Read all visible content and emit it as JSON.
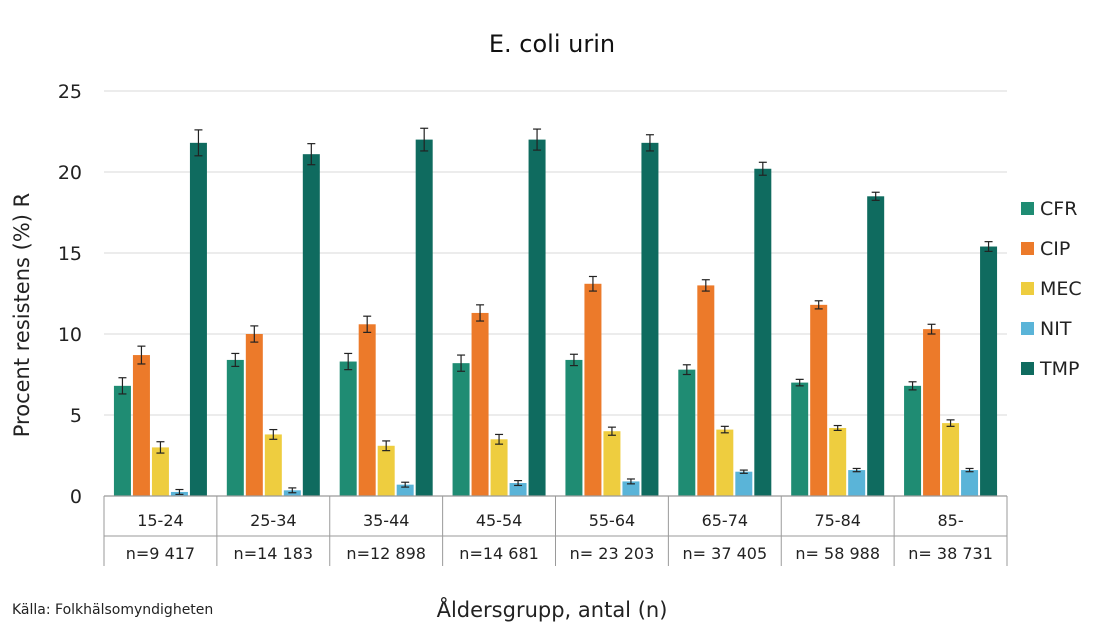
{
  "chart_data": {
    "type": "bar",
    "title": "E. coli urin",
    "xlabel": "Åldersgrupp, antal (n)",
    "ylabel": "Procent resistens (%) R",
    "ylim": [
      0,
      25
    ],
    "yticks": [
      0,
      5,
      10,
      15,
      20,
      25
    ],
    "grid": true,
    "legend_position": "right",
    "categories": [
      "15-24",
      "25-34",
      "35-44",
      "45-54",
      "55-64",
      "65-74",
      "75-84",
      "85-"
    ],
    "counts": [
      "n=9 417",
      "n=14 183",
      "n=12 898",
      "n=14 681",
      "n= 23 203",
      "n= 37 405",
      "n= 58 988",
      "n= 38 731"
    ],
    "series": [
      {
        "name": "CFR",
        "color": "#1f8c73",
        "values": [
          6.8,
          8.4,
          8.3,
          8.2,
          8.4,
          7.8,
          7.0,
          6.8
        ],
        "errors": [
          0.5,
          0.4,
          0.5,
          0.5,
          0.35,
          0.3,
          0.2,
          0.25
        ]
      },
      {
        "name": "CIP",
        "color": "#ec7a2a",
        "values": [
          8.7,
          10.0,
          10.6,
          11.3,
          13.1,
          13.0,
          11.8,
          10.3
        ],
        "errors": [
          0.55,
          0.5,
          0.5,
          0.5,
          0.45,
          0.35,
          0.25,
          0.3
        ]
      },
      {
        "name": "MEC",
        "color": "#eecd3f",
        "values": [
          3.0,
          3.8,
          3.1,
          3.5,
          4.0,
          4.1,
          4.2,
          4.5
        ],
        "errors": [
          0.35,
          0.3,
          0.3,
          0.3,
          0.25,
          0.2,
          0.15,
          0.2
        ]
      },
      {
        "name": "NIT",
        "color": "#5ab4d8",
        "values": [
          0.25,
          0.35,
          0.7,
          0.8,
          0.9,
          1.5,
          1.6,
          1.6
        ],
        "errors": [
          0.15,
          0.15,
          0.15,
          0.15,
          0.15,
          0.1,
          0.1,
          0.1
        ]
      },
      {
        "name": "TMP",
        "color": "#0f6b5f",
        "values": [
          21.8,
          21.1,
          22.0,
          22.0,
          21.8,
          20.2,
          18.5,
          15.4
        ],
        "errors": [
          0.8,
          0.65,
          0.7,
          0.65,
          0.5,
          0.4,
          0.25,
          0.3
        ]
      }
    ]
  },
  "source": "Källa: Folkhälsomyndigheten"
}
